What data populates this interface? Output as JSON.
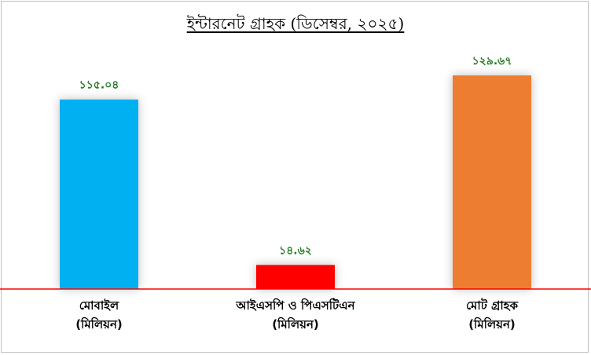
{
  "chart_data": {
    "type": "bar",
    "title": "ইন্টারনেট গ্রাহক (ডিসেম্বর, ২০২৫)",
    "categories": [
      [
        "মোবাইল",
        "(মিলিয়ন)"
      ],
      [
        "আইএসপি ও পিএসটিএন",
        "(মিলিয়ন)"
      ],
      [
        "মোট গ্রাহক",
        "(মিলিয়ন)"
      ]
    ],
    "values": [
      115.04,
      14.62,
      129.67
    ],
    "value_labels": [
      "১১৫.০৪",
      "১৪.৬২",
      "১২৯.৬৭"
    ],
    "colors": [
      "#00b0f0",
      "#ff0000",
      "#ed7d31"
    ],
    "baseline_color": "#ff0000",
    "value_label_color": "#1f7a1f",
    "ylim": [
      0,
      129.67
    ],
    "grid": false,
    "legend": "none"
  }
}
